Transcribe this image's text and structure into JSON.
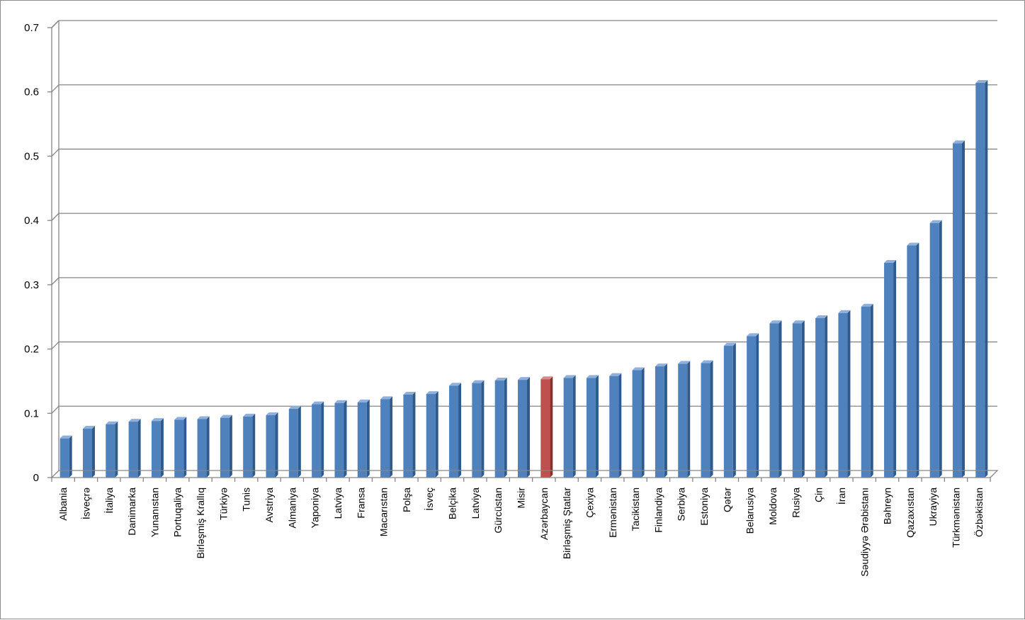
{
  "chart_data": {
    "type": "bar",
    "title": "",
    "xlabel": "",
    "ylabel": "",
    "ylim": [
      0,
      0.7
    ],
    "yticks": [
      "0",
      "0.1",
      "0.2",
      "0.3",
      "0.4",
      "0.5",
      "0.6",
      "0.7"
    ],
    "grid": true,
    "legend": "none",
    "colors": {
      "bar": "#4f81bd",
      "highlight": "#c0504d",
      "grid": "#868686"
    },
    "highlight_category": "Azərbaycan",
    "categories": [
      "Albania",
      "İsveçrə",
      "İtaliya",
      "Danimarka",
      "Yunanıstan",
      "Portuqaliya",
      "Birləşmiş Krallıq",
      "Türkiyə",
      "Tunis",
      "Avstriya",
      "Almaniya",
      "Yaponiya",
      "Latviya",
      "Fransa",
      "Macarıstan",
      "Polşa",
      "İsveç",
      "Belçika",
      "Latviya",
      "Gürcüstan",
      "Misir",
      "Azərbaycan",
      "Birləşmiş Ştatlar",
      "Çexiya",
      "Ermənistan",
      "Tacikistan",
      "Finlandiya",
      "Serbiya",
      "Estoniya",
      "Qətər",
      "Belarusiya",
      "Moldova",
      "Rusiya",
      "Çin",
      "İran",
      "Səudiyyə Ərəbistanı",
      "Bəhreyn",
      "Qazaxıstan",
      "Ukrayiya",
      "Türkmənistan",
      "Özbəkistan"
    ],
    "values": [
      0.061,
      0.076,
      0.083,
      0.087,
      0.088,
      0.09,
      0.091,
      0.093,
      0.095,
      0.097,
      0.107,
      0.114,
      0.116,
      0.117,
      0.122,
      0.129,
      0.13,
      0.143,
      0.147,
      0.151,
      0.152,
      0.153,
      0.155,
      0.155,
      0.158,
      0.167,
      0.173,
      0.177,
      0.178,
      0.205,
      0.22,
      0.24,
      0.24,
      0.248,
      0.256,
      0.266,
      0.334,
      0.361,
      0.396,
      0.52,
      0.614
    ]
  }
}
